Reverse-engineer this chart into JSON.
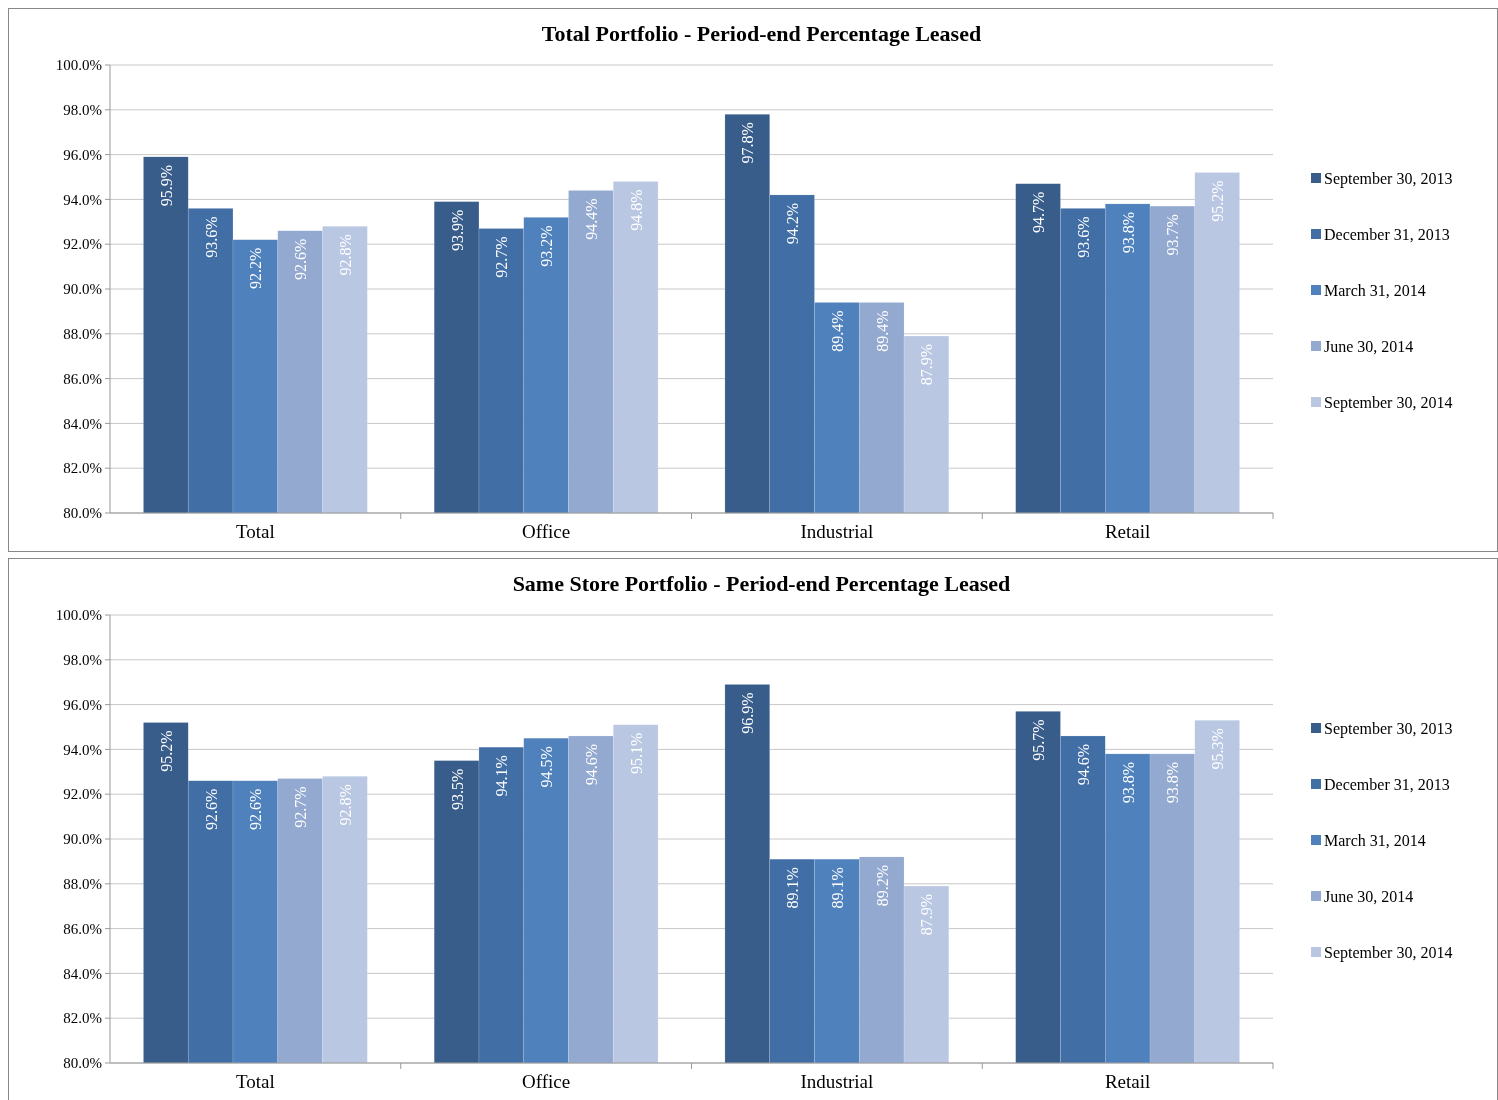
{
  "chart_data": [
    {
      "type": "bar",
      "title": "Total Portfolio  - Period-end  Percentage  Leased",
      "categories": [
        "Total",
        "Office",
        "Industrial",
        "Retail"
      ],
      "ylim": [
        80,
        100
      ],
      "yticks": [
        {
          "value": 80,
          "label": "80.0%"
        },
        {
          "value": 82,
          "label": "82.0%"
        },
        {
          "value": 84,
          "label": "84.0%"
        },
        {
          "value": 86,
          "label": "86.0%"
        },
        {
          "value": 88,
          "label": "88.0%"
        },
        {
          "value": 90,
          "label": "90.0%"
        },
        {
          "value": 92,
          "label": "92.0%"
        },
        {
          "value": 94,
          "label": "94.0%"
        },
        {
          "value": 96,
          "label": "96.0%"
        },
        {
          "value": 98,
          "label": "98.0%"
        },
        {
          "value": 100,
          "label": "100.0%"
        }
      ],
      "grid": "y",
      "legend": "right",
      "series": [
        {
          "name": "September 30, 2013",
          "color": "#385d8a",
          "values": [
            95.9,
            93.9,
            97.8,
            94.7
          ],
          "value_labels": [
            "95.9%",
            "93.9%",
            "97.8%",
            "94.7%"
          ]
        },
        {
          "name": "December 31, 2013",
          "color": "#426ea6",
          "values": [
            93.6,
            92.7,
            94.2,
            93.6
          ],
          "value_labels": [
            "93.6%",
            "92.7%",
            "94.2%",
            "93.6%"
          ]
        },
        {
          "name": "March 31, 2014",
          "color": "#4f81bd",
          "values": [
            92.2,
            93.2,
            89.4,
            93.8
          ],
          "value_labels": [
            "92.2%",
            "93.2%",
            "89.4%",
            "93.8%"
          ]
        },
        {
          "name": "June 30, 2014",
          "color": "#94a9d0",
          "values": [
            92.6,
            94.4,
            89.4,
            93.7
          ],
          "value_labels": [
            "92.6%",
            "94.4%",
            "89.4%",
            "93.7%"
          ]
        },
        {
          "name": "September 30, 2014",
          "color": "#b9c7e2",
          "values": [
            92.8,
            94.8,
            87.9,
            95.2
          ],
          "value_labels": [
            "92.8%",
            "94.8%",
            "87.9%",
            "95.2%"
          ]
        }
      ]
    },
    {
      "type": "bar",
      "title": "Same Store Portfolio  - Period-end  Percentage  Leased",
      "categories": [
        "Total",
        "Office",
        "Industrial",
        "Retail"
      ],
      "ylim": [
        80,
        100
      ],
      "yticks": [
        {
          "value": 80,
          "label": "80.0%"
        },
        {
          "value": 82,
          "label": "82.0%"
        },
        {
          "value": 84,
          "label": "84.0%"
        },
        {
          "value": 86,
          "label": "86.0%"
        },
        {
          "value": 88,
          "label": "88.0%"
        },
        {
          "value": 90,
          "label": "90.0%"
        },
        {
          "value": 92,
          "label": "92.0%"
        },
        {
          "value": 94,
          "label": "94.0%"
        },
        {
          "value": 96,
          "label": "96.0%"
        },
        {
          "value": 98,
          "label": "98.0%"
        },
        {
          "value": 100,
          "label": "100.0%"
        }
      ],
      "grid": "y",
      "legend": "right",
      "series": [
        {
          "name": "September 30, 2013",
          "color": "#385d8a",
          "values": [
            95.2,
            93.5,
            96.9,
            95.7
          ],
          "value_labels": [
            "95.2%",
            "93.5%",
            "96.9%",
            "95.7%"
          ]
        },
        {
          "name": "December 31, 2013",
          "color": "#426ea6",
          "values": [
            92.6,
            94.1,
            89.1,
            94.6
          ],
          "value_labels": [
            "92.6%",
            "94.1%",
            "89.1%",
            "94.6%"
          ]
        },
        {
          "name": "March 31, 2014",
          "color": "#4f81bd",
          "values": [
            92.6,
            94.5,
            89.1,
            93.8
          ],
          "value_labels": [
            "92.6%",
            "94.5%",
            "89.1%",
            "93.8%"
          ]
        },
        {
          "name": "June 30, 2014",
          "color": "#94a9d0",
          "values": [
            92.7,
            94.6,
            89.2,
            93.8
          ],
          "value_labels": [
            "92.7%",
            "94.6%",
            "89.2%",
            "93.8%"
          ]
        },
        {
          "name": "September 30, 2014",
          "color": "#b9c7e2",
          "values": [
            92.8,
            95.1,
            87.9,
            95.3
          ],
          "value_labels": [
            "92.8%",
            "95.1%",
            "87.9%",
            "95.3%"
          ]
        }
      ]
    }
  ]
}
